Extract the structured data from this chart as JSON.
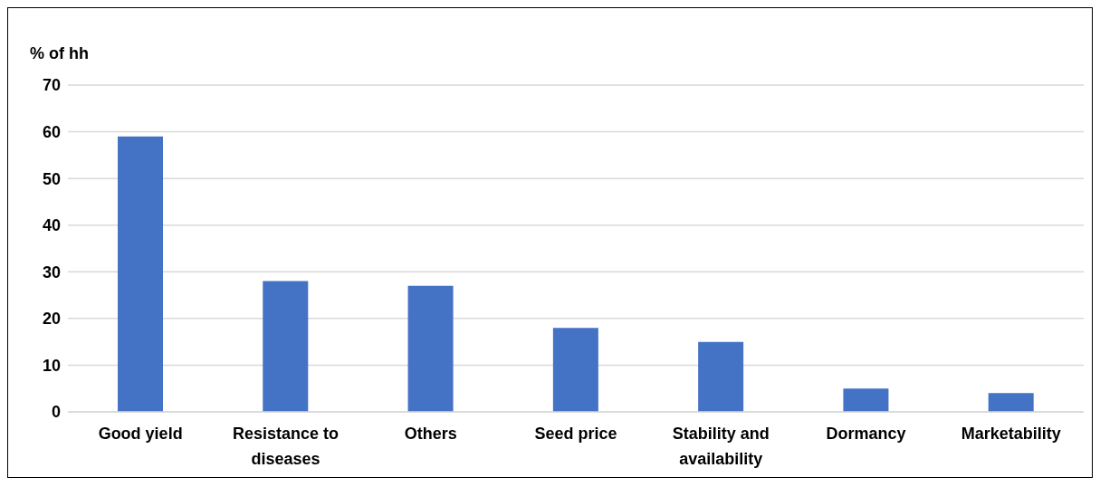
{
  "chart_data": {
    "type": "bar",
    "ylabel": "% of hh",
    "categories": [
      "Good yield",
      "Resistance to diseases",
      "Others",
      "Seed price",
      "Stability and availability",
      "Dormancy",
      "Marketability"
    ],
    "values": [
      59,
      28,
      27,
      18,
      15,
      5,
      4
    ],
    "color": "#4472c4",
    "ylim": [
      0,
      70
    ],
    "yticks": [
      0,
      10,
      20,
      30,
      40,
      50,
      60,
      70
    ],
    "grid": "y"
  }
}
